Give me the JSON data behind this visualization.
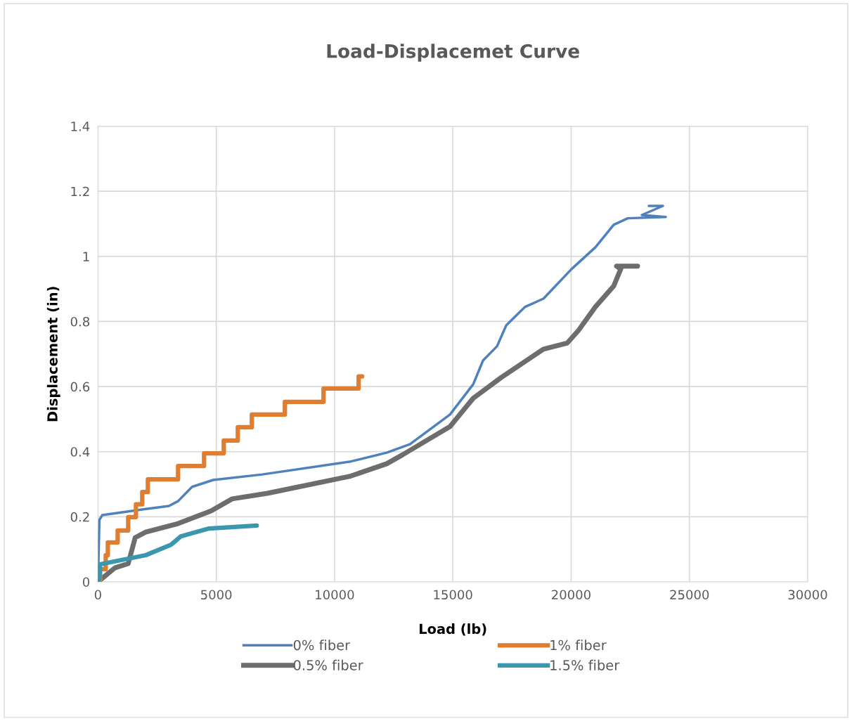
{
  "chart_data": {
    "type": "line",
    "title": "Load-Displacemet Curve",
    "xlabel": "Load (lb)",
    "ylabel": "Displacement (in)",
    "xlim": [
      0,
      30000
    ],
    "xticks": [
      0,
      5000,
      10000,
      15000,
      20000,
      25000,
      30000
    ],
    "ylim": [
      0,
      1.4
    ],
    "yticks": [
      0,
      0.2,
      0.4,
      0.6,
      0.8,
      1,
      1.2,
      1.4
    ],
    "grid": true,
    "legend": "bottom",
    "marker": "none",
    "line_style": "solid",
    "series": [
      {
        "name": "0% fiber",
        "color": "#4f81bd",
        "x": [
          0,
          60,
          180,
          1812,
          3000,
          3386,
          3980,
          4871,
          6950,
          10633,
          12207,
          13187,
          14880,
          15860,
          16276,
          16870,
          17256,
          18057,
          18830,
          20018,
          21027,
          21800,
          22394,
          23998,
          22988,
          23879,
          23285
        ],
        "values": [
          0,
          0.19,
          0.205,
          0.222,
          0.233,
          0.248,
          0.292,
          0.313,
          0.33,
          0.369,
          0.397,
          0.423,
          0.514,
          0.607,
          0.68,
          0.724,
          0.788,
          0.845,
          0.87,
          0.961,
          1.028,
          1.097,
          1.117,
          1.121,
          1.127,
          1.155,
          1.155
        ]
      },
      {
        "name": "0.5% fiber",
        "color": "#6d6d6d",
        "x": [
          0,
          713,
          1277,
          1574,
          2020,
          3386,
          4782,
          5673,
          7158,
          10633,
          12207,
          12890,
          14880,
          15860,
          17048,
          18830,
          19840,
          20315,
          21027,
          21800,
          22097,
          21919,
          22810
        ],
        "values": [
          0,
          0.043,
          0.056,
          0.136,
          0.153,
          0.179,
          0.218,
          0.255,
          0.272,
          0.324,
          0.363,
          0.391,
          0.477,
          0.564,
          0.628,
          0.715,
          0.734,
          0.773,
          0.845,
          0.909,
          0.961,
          0.97,
          0.97
        ]
      },
      {
        "name": "1% fiber",
        "color": "#dd7e33",
        "type": "step",
        "x": [
          0,
          90,
          327,
          416,
          832,
          1277,
          1604,
          1871,
          2109,
          3386,
          4485,
          5317,
          5911,
          6504,
          7900,
          9534,
          11019,
          11167
        ],
        "values": [
          0,
          0.039,
          0.082,
          0.121,
          0.158,
          0.199,
          0.238,
          0.276,
          0.315,
          0.356,
          0.395,
          0.434,
          0.475,
          0.514,
          0.553,
          0.594,
          0.631,
          0.631
        ]
      },
      {
        "name": "1.5% fiber",
        "color": "#3a97ad",
        "x": [
          0,
          60,
          89,
          2020,
          3089,
          3504,
          4693,
          6712
        ],
        "values": [
          0,
          0.01,
          0.054,
          0.082,
          0.114,
          0.14,
          0.164,
          0.173
        ]
      }
    ]
  }
}
